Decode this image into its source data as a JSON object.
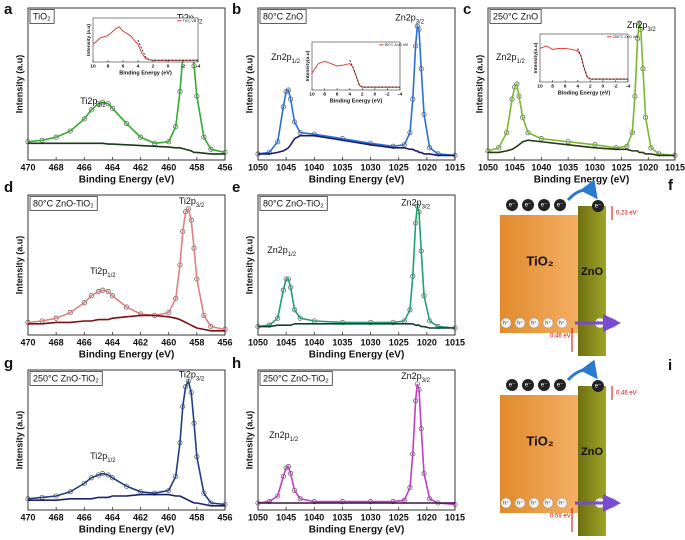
{
  "chart_data": [
    {
      "type": "line",
      "label": "a",
      "title": "TiO₂",
      "x_label": "Binding Energy (eV)",
      "y_label": "Intensity (a.u)",
      "xlim": [
        470,
        456
      ],
      "xticks": [
        470,
        468,
        466,
        464,
        462,
        460,
        458,
        456
      ],
      "ylim": [
        0,
        100
      ],
      "x": [
        470,
        469,
        468,
        467,
        466,
        465.5,
        465,
        464.7,
        464.3,
        464,
        463,
        462,
        461,
        460,
        459.5,
        459.2,
        459,
        458.8,
        458.6,
        458.4,
        458.2,
        458,
        457.5,
        457,
        456
      ],
      "series": [
        {
          "color": "#33aa33",
          "marker": "circle",
          "values": [
            12,
            13,
            15,
            19,
            27,
            33,
            37,
            38,
            37,
            34,
            24,
            15,
            11,
            12,
            22,
            45,
            68,
            85,
            88,
            80,
            62,
            42,
            15,
            7,
            5
          ]
        },
        {
          "color": "#1a3a1a",
          "values": [
            11,
            11,
            11,
            11,
            11,
            11,
            11,
            11,
            10.5,
            10.5,
            10,
            9.5,
            9,
            8.5,
            8,
            8,
            7.5,
            7,
            6.5,
            6,
            5,
            5,
            4.5,
            4,
            4
          ]
        }
      ],
      "annotations": [
        {
          "text": "Ti2p",
          "sub": "1/2"
        },
        {
          "text": "Ti2p",
          "sub": "3/2"
        }
      ],
      "inset": {
        "type": "line",
        "x_label": "Binding Energy (eV)",
        "y_label": "Intensity (a.u)",
        "xlim": [
          10,
          -4
        ],
        "xticks": [
          10,
          8,
          6,
          4,
          2,
          0,
          -2,
          -4
        ],
        "ylim": [
          0,
          100
        ],
        "legend": "upper right",
        "x": [
          10,
          9,
          8,
          7,
          6.5,
          6,
          5,
          4,
          3.5,
          3,
          2.5,
          2,
          0,
          -2,
          -4
        ],
        "series": [
          {
            "name": "TiO₂ VB",
            "color": "#e03030",
            "values": [
              40,
              55,
              60,
              75,
              80,
              70,
              60,
              40,
              20,
              8,
              5,
              4,
              4,
              4,
              4
            ]
          },
          {
            "color": "#222222",
            "dash": true,
            "values": [
              null,
              null,
              null,
              null,
              null,
              null,
              null,
              50,
              30,
              12,
              5,
              4,
              4,
              4,
              4
            ]
          }
        ]
      }
    },
    {
      "type": "line",
      "label": "b",
      "title": "80°C ZnO",
      "x_label": "Binding Energy (eV)",
      "y_label": "Intensity (a.u)",
      "xlim": [
        1050,
        1015
      ],
      "xticks": [
        1050,
        1045,
        1040,
        1035,
        1030,
        1025,
        1020,
        1015
      ],
      "ylim": [
        0,
        100
      ],
      "x": [
        1050,
        1048,
        1046.5,
        1045.5,
        1045,
        1044.6,
        1044.2,
        1043.5,
        1042.5,
        1040,
        1035,
        1030,
        1026,
        1024,
        1023,
        1022.5,
        1022,
        1021.7,
        1021.4,
        1021,
        1020.5,
        1019.5,
        1018,
        1015
      ],
      "series": [
        {
          "color": "#2a6fd6",
          "marker": "circle",
          "values": [
            4,
            5,
            12,
            35,
            45,
            46,
            40,
            25,
            18,
            17,
            14,
            11,
            9,
            10,
            18,
            40,
            75,
            88,
            86,
            60,
            30,
            8,
            4,
            3
          ]
        },
        {
          "color": "#1a1a6a",
          "values": [
            4,
            4,
            5,
            6,
            7,
            8,
            10,
            14,
            16,
            16,
            13,
            10,
            8,
            8,
            7,
            7,
            6,
            6,
            5,
            5,
            4,
            4,
            3,
            3
          ]
        }
      ],
      "annotations": [
        {
          "text": "Zn2p",
          "sub": "1/2"
        },
        {
          "text": "Zn2p",
          "sub": "3/2"
        }
      ],
      "inset": {
        "type": "line",
        "x_label": "Binding Energy (eV)",
        "y_label": "Intensity(a.u)",
        "xlim": [
          10,
          -4
        ],
        "xticks": [
          10,
          8,
          6,
          4,
          2,
          0,
          -2,
          -4
        ],
        "ylim": [
          0,
          100
        ],
        "legend": "upper right",
        "x": [
          10,
          9,
          8,
          7,
          6,
          5,
          4,
          3.5,
          3,
          2.5,
          2,
          0,
          -2,
          -4
        ],
        "series": [
          {
            "name": "80°C ZnO VB",
            "color": "#e03030",
            "values": [
              35,
              55,
              60,
              55,
              50,
              52,
              55,
              48,
              30,
              10,
              6,
              6,
              6,
              6
            ]
          },
          {
            "color": "#222222",
            "dash": true,
            "values": [
              null,
              null,
              null,
              null,
              null,
              null,
              62,
              48,
              30,
              12,
              6,
              6,
              6,
              6
            ]
          }
        ]
      }
    },
    {
      "type": "line",
      "label": "c",
      "title": "250°C ZnO",
      "x_label": "Binding Energy (eV)",
      "y_label": "Intensity (a.u)",
      "xlim": [
        1050,
        1015
      ],
      "xticks": [
        1050,
        1045,
        1040,
        1035,
        1030,
        1025,
        1020,
        1015
      ],
      "ylim": [
        0,
        100
      ],
      "x": [
        1050,
        1048,
        1046.5,
        1045.5,
        1045,
        1044.6,
        1044.2,
        1043.5,
        1042.5,
        1040,
        1035,
        1030,
        1026,
        1024,
        1023,
        1022.5,
        1022,
        1021.7,
        1021.4,
        1021,
        1020.5,
        1019.5,
        1018,
        1015
      ],
      "series": [
        {
          "color": "#7ab832",
          "marker": "circle",
          "values": [
            6,
            8,
            18,
            40,
            48,
            50,
            42,
            28,
            18,
            14,
            12,
            10,
            8,
            9,
            18,
            42,
            80,
            90,
            86,
            60,
            28,
            8,
            4,
            3
          ]
        },
        {
          "color": "#2a3a10",
          "values": [
            5,
            5,
            6,
            7,
            8,
            9,
            10,
            12,
            13,
            12,
            10,
            8,
            7,
            7,
            6,
            6,
            6,
            5,
            5,
            5,
            4,
            4,
            3,
            3
          ]
        }
      ],
      "annotations": [
        {
          "text": "Zn2p",
          "sub": "1/2"
        },
        {
          "text": "Zn2p",
          "sub": "3/2"
        }
      ],
      "inset": {
        "type": "line",
        "x_label": "Binding Energy (eV)",
        "y_label": "Intensity(a.u)",
        "xlim": [
          10,
          -4
        ],
        "xticks": [
          10,
          8,
          6,
          4,
          2,
          0,
          -2,
          -4
        ],
        "ylim": [
          0,
          100
        ],
        "legend": "upper right",
        "x": [
          10,
          9,
          8,
          7,
          6,
          5,
          4,
          3.5,
          3,
          2.5,
          2,
          0,
          -2,
          -4
        ],
        "series": [
          {
            "name": "250°C ZnO VB",
            "color": "#e03030",
            "values": [
              70,
              75,
              68,
              70,
              70,
              68,
              65,
              55,
              30,
              10,
              6,
              6,
              6,
              6
            ]
          },
          {
            "color": "#222222",
            "dash": true,
            "values": [
              null,
              null,
              null,
              null,
              null,
              null,
              70,
              55,
              30,
              12,
              6,
              6,
              6,
              6
            ]
          }
        ]
      }
    },
    {
      "type": "line",
      "label": "d",
      "title": "80°C ZnO-TiO₂",
      "x_label": "Binding Energy (eV)",
      "y_label": "Intensity (a.u)",
      "xlim": [
        470,
        456
      ],
      "xticks": [
        470,
        468,
        466,
        464,
        462,
        460,
        458,
        456
      ],
      "ylim": [
        0,
        100
      ],
      "x": [
        470,
        469,
        468,
        467,
        466,
        465.5,
        465,
        464.7,
        464.3,
        464,
        463,
        462,
        461,
        460,
        459.5,
        459.2,
        459,
        458.8,
        458.6,
        458.4,
        458.2,
        458,
        457.5,
        457,
        456
      ],
      "series": [
        {
          "color": "#e08080",
          "marker": "circle",
          "values": [
            9,
            10,
            12,
            16,
            23,
            28,
            31,
            32,
            31,
            28,
            20,
            15,
            14,
            16,
            26,
            50,
            74,
            88,
            90,
            82,
            62,
            40,
            14,
            6,
            4
          ]
        },
        {
          "color": "#7a1010",
          "values": [
            8,
            8,
            9,
            9,
            10,
            10,
            11,
            11,
            11,
            12,
            13,
            14,
            14,
            13,
            12,
            11,
            10,
            9,
            8,
            7,
            6,
            5,
            4,
            3,
            3
          ]
        }
      ],
      "annotations": [
        {
          "text": "Ti2p",
          "sub": "1/2"
        },
        {
          "text": "Ti2p",
          "sub": "3/2"
        }
      ]
    },
    {
      "type": "line",
      "label": "e",
      "title": "80°C ZnO-TiO₂",
      "x_label": "Binding Energy (eV)",
      "y_label": "Intensity (a.u)",
      "xlim": [
        1050,
        1015
      ],
      "xticks": [
        1050,
        1045,
        1040,
        1035,
        1030,
        1025,
        1020,
        1015
      ],
      "ylim": [
        0,
        100
      ],
      "x": [
        1050,
        1048,
        1046.5,
        1045.5,
        1045,
        1044.6,
        1044.2,
        1043.5,
        1042.5,
        1040,
        1035,
        1030,
        1026,
        1024,
        1023,
        1022.5,
        1022,
        1021.7,
        1021.4,
        1021,
        1020.5,
        1019.5,
        1018,
        1015
      ],
      "series": [
        {
          "color": "#22a070",
          "marker": "circle",
          "values": [
            6,
            7,
            12,
            32,
            40,
            40,
            34,
            18,
            12,
            10,
            9,
            9,
            9,
            10,
            18,
            42,
            80,
            92,
            88,
            60,
            28,
            10,
            6,
            5
          ]
        },
        {
          "color": "#104030",
          "values": [
            6,
            6,
            7,
            7,
            7,
            7,
            7,
            8,
            8,
            8,
            8,
            8,
            8,
            8,
            8,
            8,
            7,
            7,
            7,
            6,
            6,
            5,
            5,
            5
          ]
        }
      ],
      "annotations": [
        {
          "text": "Zn2p",
          "sub": "1/2"
        },
        {
          "text": "Zn2p",
          "sub": "3/2"
        }
      ]
    },
    {
      "type": "line",
      "label": "g",
      "title": "250°C ZnO-TiO₂",
      "x_label": "Binding Energy (eV)",
      "y_label": "Intensity (a.u)",
      "xlim": [
        470,
        456
      ],
      "xticks": [
        470,
        468,
        466,
        464,
        462,
        460,
        458,
        456
      ],
      "ylim": [
        0,
        100
      ],
      "x": [
        470,
        469,
        468,
        467,
        466,
        465.5,
        465,
        464.7,
        464.3,
        464,
        463,
        462,
        461,
        460,
        459.5,
        459.2,
        459,
        458.8,
        458.6,
        458.4,
        458.2,
        458,
        457.5,
        457,
        456
      ],
      "series": [
        {
          "color": "#1f3f80",
          "marker": "circle",
          "values": [
            8,
            9,
            10,
            13,
            19,
            23,
            25,
            26,
            25,
            23,
            17,
            13,
            12,
            14,
            24,
            48,
            74,
            88,
            92,
            84,
            62,
            38,
            12,
            5,
            4
          ]
        },
        {
          "color": "#20206a",
          "values": [
            7,
            7,
            7,
            8,
            8,
            8,
            9,
            9,
            9,
            10,
            10,
            11,
            11,
            11,
            10,
            10,
            9,
            8,
            7,
            6,
            5,
            5,
            4,
            3,
            3
          ]
        }
      ],
      "annotations": [
        {
          "text": "Ti2p",
          "sub": "1/2"
        },
        {
          "text": "Ti2p",
          "sub": "3/2"
        }
      ]
    },
    {
      "type": "line",
      "label": "h",
      "title": "250°C ZnO-TiO₂",
      "x_label": "Binding Energy (eV)",
      "y_label": "Intensity (a.u)",
      "xlim": [
        1050,
        1015
      ],
      "xticks": [
        1050,
        1045,
        1040,
        1035,
        1030,
        1025,
        1020,
        1015
      ],
      "ylim": [
        0,
        100
      ],
      "x": [
        1050,
        1048,
        1046.5,
        1045.5,
        1045,
        1044.6,
        1044.2,
        1043.5,
        1042.5,
        1040,
        1035,
        1030,
        1026,
        1024,
        1023,
        1022.5,
        1022,
        1021.7,
        1021.4,
        1021,
        1020.5,
        1019.5,
        1018,
        1015
      ],
      "series": [
        {
          "color": "#c040c0",
          "marker": "circle",
          "values": [
            5,
            6,
            10,
            24,
            30,
            31,
            26,
            14,
            8,
            6,
            6,
            6,
            6,
            7,
            16,
            40,
            78,
            90,
            86,
            58,
            26,
            8,
            5,
            4
          ]
        },
        {
          "color": "#401040",
          "values": [
            5,
            5,
            5,
            5,
            5,
            5,
            5,
            5,
            5,
            5,
            5,
            5,
            5,
            5,
            5,
            5,
            5,
            5,
            5,
            5,
            5,
            5,
            5,
            5
          ]
        }
      ],
      "annotations": [
        {
          "text": "Zn2p",
          "sub": "1/2"
        },
        {
          "text": "Zn2p",
          "sub": "3/2"
        }
      ]
    }
  ],
  "diagrams": [
    {
      "label": "f",
      "materials": [
        "TiO₂",
        "ZnO"
      ],
      "electron": "e⁻",
      "hole": "h⁺",
      "energies": [
        "0.23 eV",
        "0.46 eV"
      ]
    },
    {
      "label": "i",
      "materials": [
        "TiO₂",
        "ZnO"
      ],
      "electron": "e⁻",
      "hole": "h⁺",
      "energies": [
        "0.46 eV",
        "0.59 eV"
      ]
    }
  ]
}
